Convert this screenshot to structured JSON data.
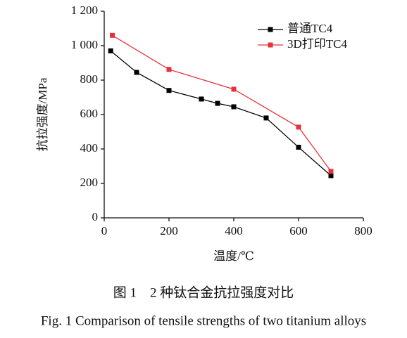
{
  "chart_data": {
    "type": "line",
    "xlabel": "温度/℃",
    "ylabel": "抗拉强度/MPa",
    "caption": "图 1　2 种钛合金抗拉强度对比",
    "caption_en": "Fig. 1 Comparison of tensile strengths of two titanium alloys",
    "series": [
      {
        "name": "普通TC4",
        "color": "#000000",
        "x": [
          20,
          100,
          200,
          300,
          350,
          400,
          500,
          600,
          700
        ],
        "values": [
          970,
          845,
          740,
          690,
          665,
          645,
          580,
          410,
          245
        ]
      },
      {
        "name": "3D打印TC4",
        "color": "#e8313a",
        "x": [
          25,
          200,
          400,
          600,
          700
        ],
        "values": [
          1060,
          862,
          747,
          527,
          270
        ]
      }
    ],
    "xlim": [
      0,
      800
    ],
    "xticks": [
      0,
      200,
      400,
      600,
      800
    ],
    "ylim": [
      0,
      1200
    ],
    "yticks": [
      0,
      200,
      400,
      600,
      800,
      {
        "value": 1000,
        "label": "1 000"
      },
      {
        "value": 1200,
        "label": "1 200"
      }
    ],
    "legend": "upper right",
    "grid": false
  }
}
